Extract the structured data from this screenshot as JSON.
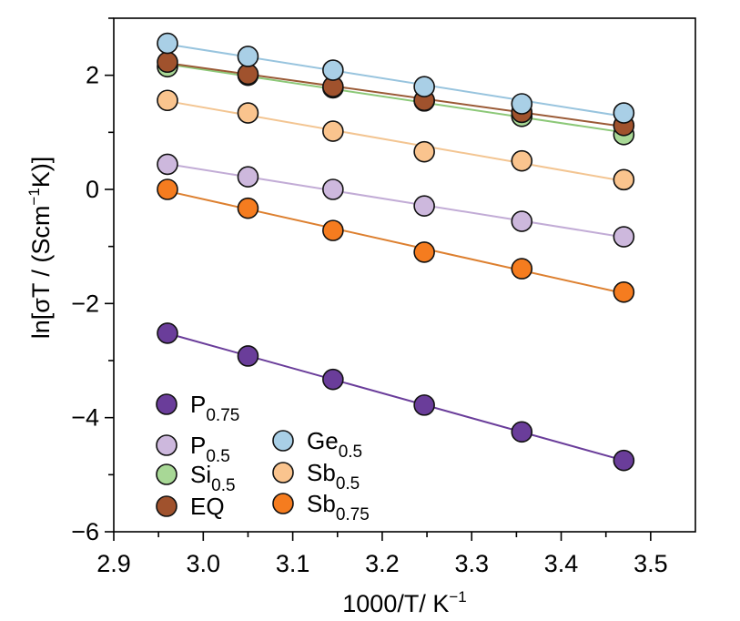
{
  "chart_data": {
    "type": "scatter",
    "title": "",
    "xlabel": {
      "text": "1000/T/ K",
      "sup": "−1"
    },
    "ylabel": {
      "pre": "ln[σT / (Scm",
      "sup1": "−1",
      "mid": "K)]"
    },
    "xlim": [
      2.9,
      3.55
    ],
    "ylim": [
      -6,
      3.0
    ],
    "xticks": [
      2.9,
      3.0,
      3.1,
      3.2,
      3.3,
      3.4,
      3.5
    ],
    "xtick_labels": [
      "2.9",
      "3.0",
      "3.1",
      "3.2",
      "3.3",
      "3.4",
      "3.5"
    ],
    "yticks": [
      -6,
      -4,
      -2,
      0,
      2
    ],
    "ytick_labels": [
      "−6",
      "−4",
      "−2",
      "0",
      "2"
    ],
    "grid": false,
    "legend_position": "bottom-left",
    "x": [
      2.96,
      3.05,
      3.145,
      3.247,
      3.356,
      3.47
    ],
    "series": [
      {
        "key": "si05",
        "name": "Si",
        "sub": "0.5",
        "color": "#a8d896",
        "line": "#8cc878",
        "values": [
          2.15,
          2.0,
          1.78,
          1.55,
          1.28,
          0.96
        ]
      },
      {
        "key": "eq",
        "name": "EQ",
        "sub": "",
        "color": "#a0522d",
        "line": "#9a5a36",
        "values": [
          2.23,
          2.02,
          1.8,
          1.56,
          1.35,
          1.12
        ]
      },
      {
        "key": "ge05",
        "name": "Ge",
        "sub": "0.5",
        "color": "#a9cfe6",
        "line": "#98c4de",
        "values": [
          2.56,
          2.33,
          2.09,
          1.8,
          1.5,
          1.34
        ]
      },
      {
        "key": "sb05",
        "name": "Sb",
        "sub": "0.5",
        "color": "#fac48e",
        "line": "#f3c592",
        "values": [
          1.56,
          1.34,
          1.02,
          0.66,
          0.5,
          0.17
        ]
      },
      {
        "key": "p05",
        "name": "P",
        "sub": "0.5",
        "color": "#cdb8dd",
        "line": "#c2acd6",
        "values": [
          0.44,
          0.22,
          0.0,
          -0.29,
          -0.56,
          -0.83
        ]
      },
      {
        "key": "sb075",
        "name": "Sb",
        "sub": "0.75",
        "color": "#f57c1f",
        "line": "#dd8030",
        "values": [
          0.0,
          -0.33,
          -0.72,
          -1.1,
          -1.39,
          -1.8
        ]
      },
      {
        "key": "p075",
        "name": "P",
        "sub": "0.75",
        "color": "#6a3d9a",
        "line": "#6a3d9a",
        "values": [
          -2.52,
          -2.92,
          -3.33,
          -3.78,
          -4.25,
          -4.75
        ]
      }
    ],
    "legend_col1": [
      "p075",
      "p05",
      "si05",
      "eq"
    ],
    "legend_col2": [
      "ge05",
      "sb05",
      "sb075"
    ]
  }
}
